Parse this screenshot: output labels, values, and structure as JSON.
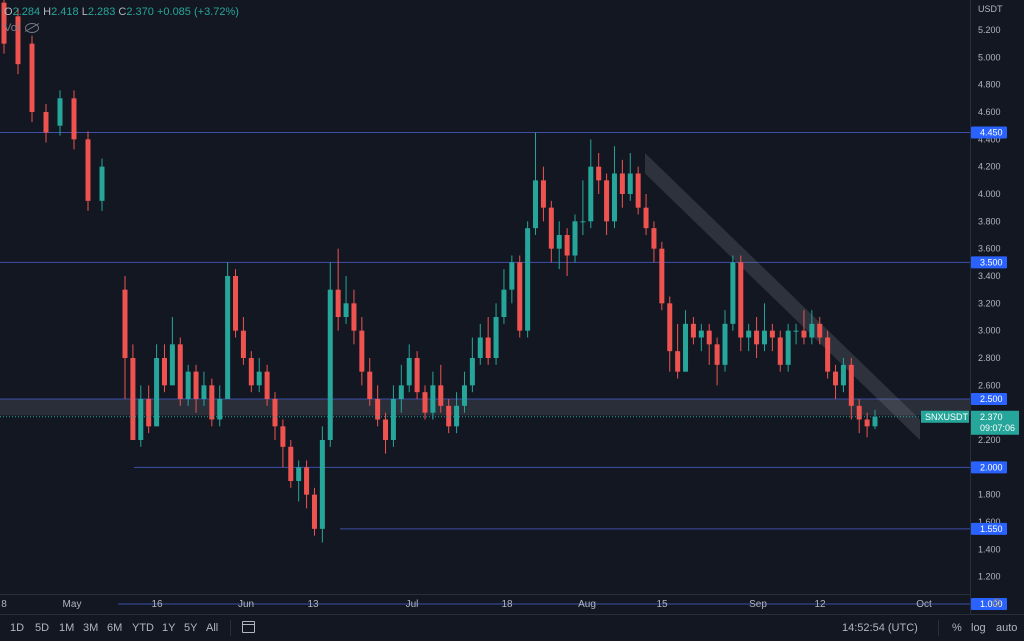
{
  "header": {
    "o_label": "O",
    "o_value": "2.284",
    "h_label": "H",
    "h_value": "2.418",
    "l_label": "L",
    "l_value": "2.283",
    "c_label": "C",
    "c_value": "2.370",
    "change": "+0.085 (+3.72%)",
    "vol_label": "Vol",
    "currency": "USDT"
  },
  "colors": {
    "up": "#26a69a",
    "down": "#ef5350",
    "bg": "#131722",
    "hline": "#3d4fa8",
    "label_bg": "#2962ff",
    "price_tag": "#26a69a",
    "zone": "#363a45",
    "grid": "#1e222d"
  },
  "chart_data": {
    "type": "candlestick",
    "symbol": "SNXUSDT",
    "ylim": [
      1.0,
      5.4
    ],
    "y_ticks": [
      "5.200",
      "5.000",
      "4.800",
      "4.600",
      "4.400",
      "4.200",
      "4.000",
      "3.800",
      "3.600",
      "3.400",
      "3.200",
      "3.000",
      "2.800",
      "2.600",
      "2.200",
      "1.800",
      "1.600",
      "1.400",
      "1.200"
    ],
    "x_labels": [
      "8",
      "May",
      "16",
      "Jun",
      "13",
      "Jul",
      "18",
      "Aug",
      "15",
      "Sep",
      "12",
      "Oct"
    ],
    "horizontal_levels": [
      "4.450",
      "3.500",
      "2.500",
      "2.000",
      "1.550",
      "1.000"
    ],
    "support_zone": [
      2.38,
      2.5
    ],
    "last_price": "2.370",
    "countdown": "09:07:06",
    "trend_channel": {
      "from": "2022-08-11",
      "to": "2022-10-01",
      "start": [
        4.3,
        4.15
      ],
      "end": [
        2.35,
        2.2
      ]
    },
    "candles": [
      [
        3.3,
        2.8,
        3.4,
        2.5
      ],
      [
        2.8,
        2.2,
        2.9,
        2.2
      ],
      [
        2.2,
        2.5,
        2.6,
        2.15
      ],
      [
        2.5,
        2.3,
        2.6,
        2.25
      ],
      [
        2.3,
        2.8,
        2.9,
        2.3
      ],
      [
        2.8,
        2.6,
        2.9,
        2.55
      ],
      [
        2.6,
        2.9,
        3.1,
        2.6
      ],
      [
        2.9,
        2.5,
        2.95,
        2.45
      ],
      [
        2.5,
        2.7,
        2.75,
        2.45
      ],
      [
        2.7,
        2.5,
        2.75,
        2.4
      ],
      [
        2.5,
        2.6,
        2.7,
        2.45
      ],
      [
        2.6,
        2.35,
        2.65,
        2.3
      ],
      [
        2.35,
        2.5,
        2.6,
        2.3
      ],
      [
        2.5,
        3.4,
        3.5,
        2.5
      ],
      [
        3.4,
        3.0,
        3.45,
        2.95
      ],
      [
        3.0,
        2.8,
        3.1,
        2.75
      ],
      [
        2.8,
        2.6,
        2.85,
        2.55
      ],
      [
        2.6,
        2.7,
        2.8,
        2.55
      ],
      [
        2.7,
        2.5,
        2.75,
        2.45
      ],
      [
        2.5,
        2.3,
        2.55,
        2.2
      ],
      [
        2.3,
        2.15,
        2.35,
        2.0
      ],
      [
        2.15,
        1.9,
        2.2,
        1.85
      ],
      [
        1.9,
        2.0,
        2.05,
        1.75
      ],
      [
        2.0,
        1.8,
        2.05,
        1.7
      ],
      [
        1.8,
        1.55,
        1.85,
        1.5
      ],
      [
        1.55,
        2.2,
        2.3,
        1.45
      ],
      [
        2.2,
        3.3,
        3.5,
        2.15
      ],
      [
        3.3,
        3.1,
        3.6,
        3.0
      ],
      [
        3.1,
        3.2,
        3.4,
        3.05
      ],
      [
        3.2,
        3.0,
        3.3,
        2.9
      ],
      [
        3.0,
        2.7,
        3.1,
        2.6
      ],
      [
        2.7,
        2.5,
        2.8,
        2.45
      ],
      [
        2.5,
        2.35,
        2.6,
        2.3
      ],
      [
        2.35,
        2.2,
        2.4,
        2.1
      ],
      [
        2.2,
        2.5,
        2.6,
        2.15
      ],
      [
        2.5,
        2.6,
        2.75,
        2.4
      ],
      [
        2.6,
        2.8,
        2.9,
        2.55
      ],
      [
        2.8,
        2.55,
        2.85,
        2.5
      ],
      [
        2.55,
        2.4,
        2.6,
        2.35
      ],
      [
        2.4,
        2.6,
        2.7,
        2.35
      ],
      [
        2.6,
        2.45,
        2.75,
        2.4
      ],
      [
        2.45,
        2.3,
        2.5,
        2.25
      ],
      [
        2.3,
        2.45,
        2.55,
        2.25
      ],
      [
        2.45,
        2.6,
        2.7,
        2.4
      ],
      [
        2.6,
        2.8,
        2.95,
        2.55
      ],
      [
        2.8,
        2.95,
        3.05,
        2.75
      ],
      [
        2.95,
        2.8,
        3.1,
        2.75
      ],
      [
        2.8,
        3.1,
        3.2,
        2.75
      ],
      [
        3.1,
        3.3,
        3.45,
        3.05
      ],
      [
        3.3,
        3.5,
        3.55,
        3.2
      ],
      [
        3.5,
        3.0,
        3.55,
        2.95
      ],
      [
        3.0,
        3.75,
        3.8,
        2.95
      ],
      [
        3.75,
        4.1,
        4.45,
        3.7
      ],
      [
        4.1,
        3.9,
        4.2,
        3.8
      ],
      [
        3.9,
        3.6,
        3.95,
        3.5
      ],
      [
        3.6,
        3.7,
        3.8,
        3.45
      ],
      [
        3.7,
        3.55,
        3.75,
        3.4
      ],
      [
        3.55,
        3.8,
        3.85,
        3.5
      ],
      [
        3.8,
        3.8,
        4.1,
        3.7
      ],
      [
        3.8,
        4.2,
        4.4,
        3.75
      ],
      [
        4.2,
        4.1,
        4.3,
        4.0
      ],
      [
        4.1,
        3.8,
        4.15,
        3.7
      ],
      [
        3.8,
        4.15,
        4.35,
        3.75
      ],
      [
        4.15,
        4.0,
        4.25,
        3.9
      ],
      [
        4.0,
        4.15,
        4.3,
        3.95
      ],
      [
        4.15,
        3.9,
        4.2,
        3.85
      ],
      [
        3.9,
        3.75,
        4.0,
        3.7
      ],
      [
        3.75,
        3.6,
        3.8,
        3.5
      ],
      [
        3.6,
        3.2,
        3.65,
        3.15
      ],
      [
        3.2,
        2.85,
        3.25,
        2.7
      ],
      [
        2.85,
        2.7,
        3.05,
        2.65
      ],
      [
        2.7,
        3.05,
        3.15,
        2.7
      ],
      [
        3.05,
        2.95,
        3.1,
        2.9
      ],
      [
        2.95,
        3.0,
        3.05,
        2.85
      ],
      [
        3.0,
        2.9,
        3.05,
        2.75
      ],
      [
        2.9,
        2.75,
        2.95,
        2.6
      ],
      [
        2.75,
        3.05,
        3.15,
        2.7
      ],
      [
        3.05,
        3.5,
        3.55,
        3.0
      ],
      [
        3.5,
        2.95,
        3.55,
        2.85
      ],
      [
        2.95,
        3.0,
        3.05,
        2.85
      ],
      [
        3.0,
        2.9,
        3.1,
        2.8
      ],
      [
        2.9,
        3.0,
        3.2,
        2.85
      ],
      [
        3.0,
        2.95,
        3.05,
        2.85
      ],
      [
        2.95,
        2.75,
        3.0,
        2.7
      ],
      [
        2.75,
        3.0,
        3.05,
        2.7
      ],
      [
        3.0,
        3.0,
        3.05,
        2.9
      ],
      [
        3.0,
        2.95,
        3.15,
        2.9
      ],
      [
        2.95,
        3.05,
        3.15,
        2.9
      ],
      [
        3.05,
        2.95,
        3.1,
        2.9
      ],
      [
        2.95,
        2.7,
        3.0,
        2.65
      ],
      [
        2.7,
        2.6,
        2.75,
        2.5
      ],
      [
        2.6,
        2.75,
        2.8,
        2.55
      ],
      [
        2.75,
        2.45,
        2.8,
        2.35
      ],
      [
        2.45,
        2.35,
        2.5,
        2.25
      ],
      [
        2.35,
        2.3,
        2.4,
        2.22
      ],
      [
        2.3,
        2.37,
        2.42,
        2.28
      ]
    ]
  },
  "bottom": {
    "timeframes": [
      "1D",
      "5D",
      "1M",
      "3M",
      "6M",
      "YTD",
      "1Y",
      "5Y",
      "All"
    ],
    "time": "14:52:54 (UTC)",
    "percent": "%",
    "log": "log",
    "auto": "auto"
  }
}
